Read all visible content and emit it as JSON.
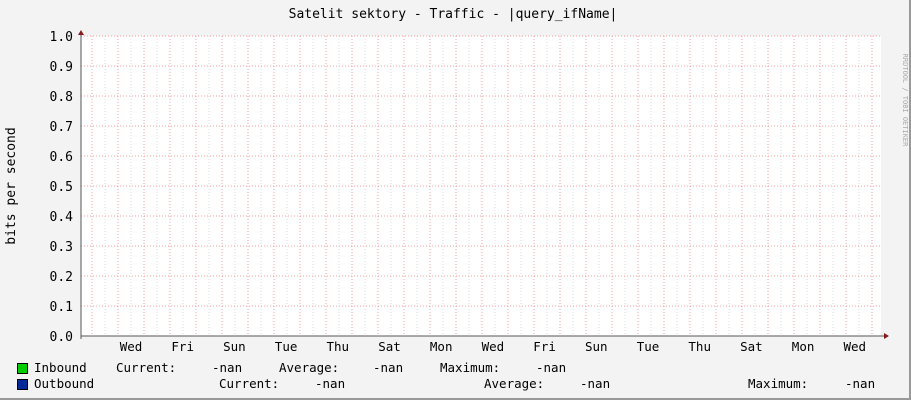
{
  "chart_data": {
    "type": "line",
    "title": "Satelit sektory - Traffic - |query_ifName|",
    "ylabel": "bits per second",
    "xlabel": "",
    "ylim": [
      0,
      1.0
    ],
    "y_ticks": [
      "0.0",
      "0.1",
      "0.2",
      "0.3",
      "0.4",
      "0.5",
      "0.6",
      "0.7",
      "0.8",
      "0.9",
      "1.0"
    ],
    "x_tick_labels": [
      "Wed",
      "Fri",
      "Sun",
      "Tue",
      "Thu",
      "Sat",
      "Mon",
      "Wed",
      "Fri",
      "Sun",
      "Tue",
      "Thu",
      "Sat",
      "Mon",
      "Wed"
    ],
    "grid": true,
    "watermark": "RRDTOOL / TOBI OETIKER",
    "series": [
      {
        "name": "Inbound",
        "color": "#00cc00",
        "values": [],
        "current": "-nan",
        "average": "-nan",
        "maximum": "-nan"
      },
      {
        "name": "Outbound",
        "color": "#002a97",
        "values": [],
        "current": "-nan",
        "average": "-nan",
        "maximum": "-nan"
      }
    ]
  },
  "legend": {
    "current_label": "Current:",
    "average_label": "Average:",
    "maximum_label": "Maximum:"
  }
}
